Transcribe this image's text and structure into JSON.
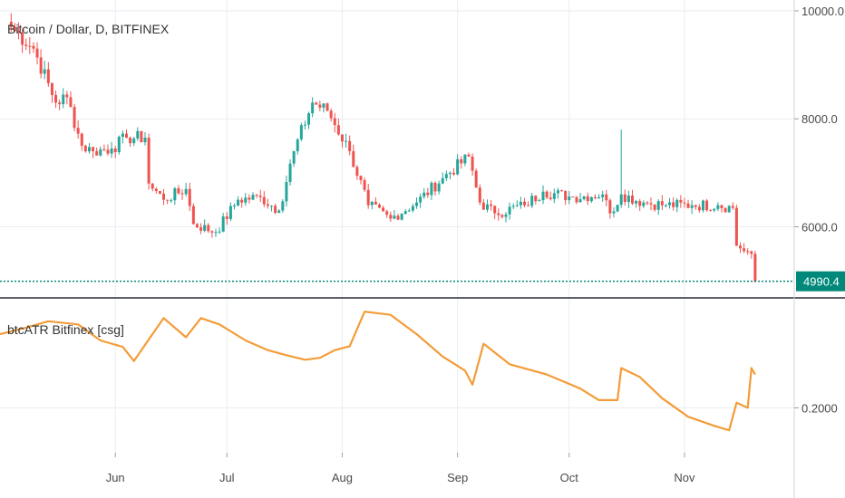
{
  "chart_data": [
    {
      "type": "candlestick",
      "title": "Bitcoin / Dollar, D, BITFINEX",
      "y_ticks": [
        "10000.0",
        "8000.0",
        "6000.0"
      ],
      "ylim": [
        4700,
        10200
      ],
      "last_price": 4990.4,
      "last_price_label": "4990.4",
      "colors": {
        "up": "#26a69a",
        "down": "#ef5350",
        "last_price_line": "#00897b"
      },
      "x_ticks": [
        {
          "date": "2018-06-01",
          "label": "Jun"
        },
        {
          "date": "2018-07-01",
          "label": "Jul"
        },
        {
          "date": "2018-08-01",
          "label": "Aug"
        },
        {
          "date": "2018-09-01",
          "label": "Sep"
        },
        {
          "date": "2018-10-01",
          "label": "Oct"
        },
        {
          "date": "2018-11-01",
          "label": "Nov"
        }
      ],
      "close_anchors": [
        [
          "2018-05-04",
          9700
        ],
        [
          "2018-05-10",
          9300
        ],
        [
          "2018-05-16",
          8300
        ],
        [
          "2018-05-19",
          8400
        ],
        [
          "2018-05-23",
          7500
        ],
        [
          "2018-05-26",
          7400
        ],
        [
          "2018-05-31",
          7450
        ],
        [
          "2018-06-04",
          7650
        ],
        [
          "2018-06-09",
          7650
        ],
        [
          "2018-06-10",
          6800
        ],
        [
          "2018-06-14",
          6500
        ],
        [
          "2018-06-20",
          6700
        ],
        [
          "2018-06-22",
          6050
        ],
        [
          "2018-06-28",
          5900
        ],
        [
          "2018-07-04",
          6500
        ],
        [
          "2018-07-10",
          6550
        ],
        [
          "2018-07-15",
          6300
        ],
        [
          "2018-07-19",
          7400
        ],
        [
          "2018-07-24",
          8300
        ],
        [
          "2018-07-28",
          8150
        ],
        [
          "2018-08-03",
          7400
        ],
        [
          "2018-08-08",
          6400
        ],
        [
          "2018-08-14",
          6150
        ],
        [
          "2018-08-21",
          6450
        ],
        [
          "2018-08-28",
          6900
        ],
        [
          "2018-09-04",
          7300
        ],
        [
          "2018-09-07",
          6450
        ],
        [
          "2018-09-11",
          6250
        ],
        [
          "2018-09-19",
          6400
        ],
        [
          "2018-09-24",
          6650
        ],
        [
          "2018-10-02",
          6550
        ],
        [
          "2018-10-10",
          6600
        ],
        [
          "2018-10-12",
          6250
        ],
        [
          "2018-10-15",
          6600
        ],
        [
          "2018-10-21",
          6450
        ],
        [
          "2018-10-27",
          6400
        ],
        [
          "2018-11-03",
          6400
        ],
        [
          "2018-11-10",
          6400
        ],
        [
          "2018-11-14",
          6350
        ],
        [
          "2018-11-15",
          5650
        ],
        [
          "2018-11-19",
          5500
        ],
        [
          "2018-11-20",
          4990.4
        ]
      ],
      "spike": {
        "date": "2018-10-15",
        "high": 7800
      }
    },
    {
      "type": "line",
      "series": [
        {
          "name": "btcATR Bitfinex [csg]"
        }
      ],
      "y_ticks": [
        "0.2000"
      ],
      "ylim": [
        0.13,
        0.37
      ],
      "colors": {
        "line": "#f39c38"
      },
      "points": [
        [
          "2018-05-01",
          0.315
        ],
        [
          "2018-05-08",
          0.325
        ],
        [
          "2018-05-14",
          0.335
        ],
        [
          "2018-05-22",
          0.33
        ],
        [
          "2018-05-28",
          0.305
        ],
        [
          "2018-06-03",
          0.295
        ],
        [
          "2018-06-06",
          0.273
        ],
        [
          "2018-06-14",
          0.34
        ],
        [
          "2018-06-20",
          0.31
        ],
        [
          "2018-06-24",
          0.34
        ],
        [
          "2018-06-29",
          0.33
        ],
        [
          "2018-07-06",
          0.305
        ],
        [
          "2018-07-12",
          0.29
        ],
        [
          "2018-07-17",
          0.282
        ],
        [
          "2018-07-22",
          0.275
        ],
        [
          "2018-07-26",
          0.278
        ],
        [
          "2018-07-30",
          0.29
        ],
        [
          "2018-08-03",
          0.296
        ],
        [
          "2018-08-07",
          0.35
        ],
        [
          "2018-08-14",
          0.345
        ],
        [
          "2018-08-21",
          0.315
        ],
        [
          "2018-08-28",
          0.28
        ],
        [
          "2018-09-03",
          0.258
        ],
        [
          "2018-09-05",
          0.236
        ],
        [
          "2018-09-08",
          0.3
        ],
        [
          "2018-09-15",
          0.268
        ],
        [
          "2018-09-25",
          0.252
        ],
        [
          "2018-10-04",
          0.23
        ],
        [
          "2018-10-09",
          0.212
        ],
        [
          "2018-10-14",
          0.212
        ],
        [
          "2018-10-15",
          0.262
        ],
        [
          "2018-10-20",
          0.248
        ],
        [
          "2018-10-26",
          0.215
        ],
        [
          "2018-11-02",
          0.186
        ],
        [
          "2018-11-09",
          0.172
        ],
        [
          "2018-11-13",
          0.165
        ],
        [
          "2018-11-15",
          0.208
        ],
        [
          "2018-11-18",
          0.2
        ],
        [
          "2018-11-19",
          0.262
        ],
        [
          "2018-11-20",
          0.252
        ]
      ]
    }
  ]
}
